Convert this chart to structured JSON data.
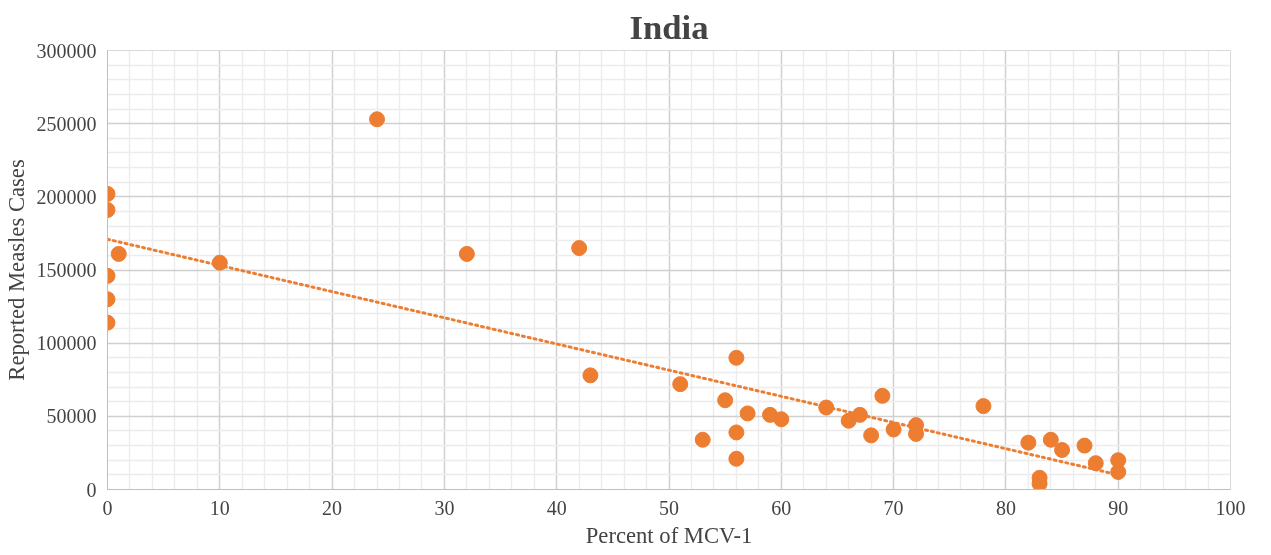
{
  "chart_data": {
    "type": "scatter",
    "title": "India",
    "xlabel": "Percent of MCV-1",
    "ylabel": "Reported Measles Cases",
    "xlim": [
      0,
      100
    ],
    "xticks": [
      0,
      10,
      20,
      30,
      40,
      50,
      60,
      70,
      80,
      90,
      100
    ],
    "ylim": [
      0,
      300000
    ],
    "yticks": [
      0,
      50000,
      100000,
      150000,
      200000,
      250000,
      300000
    ],
    "grid": true,
    "marker": "circle",
    "series": [
      {
        "color": "#ed7d31",
        "x": [
          0,
          0,
          1,
          0,
          0,
          0,
          10,
          24,
          32,
          42,
          43,
          51,
          53,
          55,
          56,
          56,
          56,
          57,
          59,
          60,
          64,
          66,
          67,
          68,
          69,
          70,
          72,
          72,
          78,
          82,
          83,
          83,
          84,
          85,
          87,
          88,
          90,
          90
        ],
        "values": [
          202000,
          191000,
          161000,
          146000,
          130000,
          114000,
          155000,
          253000,
          161000,
          165000,
          78000,
          72000,
          34000,
          61000,
          90000,
          39000,
          21000,
          52000,
          51000,
          48000,
          56000,
          47000,
          51000,
          37000,
          64000,
          41000,
          44000,
          38000,
          57000,
          32000,
          8000,
          4000,
          34000,
          27000,
          30000,
          18000,
          20000,
          12000
        ]
      },
      {
        "type": "line",
        "marker": "none",
        "color": "#ed7d31",
        "line_style": "dotted",
        "x": [
          0,
          90
        ],
        "values": [
          171000,
          10000
        ]
      }
    ]
  }
}
